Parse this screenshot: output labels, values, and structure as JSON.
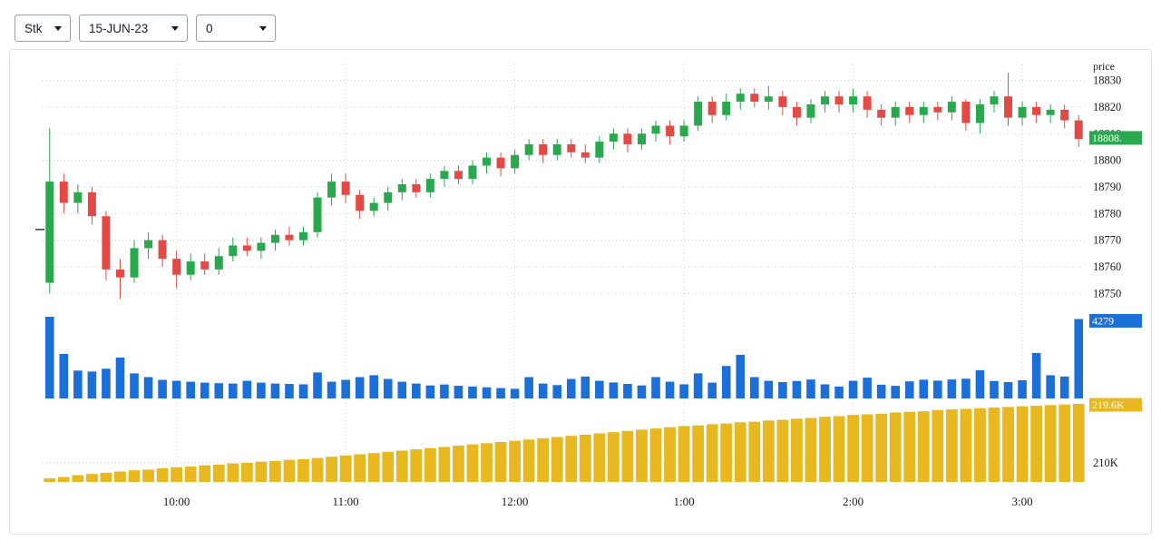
{
  "toolbar": {
    "selects": [
      {
        "name": "instrument",
        "value": "Stk"
      },
      {
        "name": "expiry",
        "value": "15-JUN-23"
      },
      {
        "name": "strike",
        "value": "0"
      }
    ]
  },
  "chart_data": {
    "type": "candlestick",
    "title": "",
    "interval": "5m",
    "grid": "dotted",
    "legend": "none",
    "panes": [
      "price-candles",
      "volume-bars",
      "cumulative-yellow-bars"
    ],
    "price_axis": {
      "title": "price",
      "ticks": [
        18830,
        18820,
        18810,
        18800,
        18790,
        18780,
        18770,
        18760,
        18750
      ],
      "range": [
        18746,
        18836
      ]
    },
    "last_price_label": "18808.",
    "last_price_value": 18808.4,
    "open_marker_price": 18774,
    "volume_tag": "4279",
    "yellow_tag": "219.6K",
    "yellow_axis_label": "210K",
    "yellow_axis_label_value": 210,
    "x_labels": [
      {
        "label": "10:00",
        "index": 9
      },
      {
        "label": "11:00",
        "index": 21
      },
      {
        "label": "12:00",
        "index": 33
      },
      {
        "label": "1:00",
        "index": 45
      },
      {
        "label": "2:00",
        "index": 57
      },
      {
        "label": "3:00",
        "index": 69
      }
    ],
    "candles": [
      [
        18754,
        18812,
        18750,
        18792
      ],
      [
        18792,
        18795,
        18780,
        18784
      ],
      [
        18784,
        18791,
        18780,
        18788
      ],
      [
        18788,
        18790,
        18776,
        18779
      ],
      [
        18779,
        18781,
        18755,
        18759
      ],
      [
        18759,
        18763,
        18748,
        18756
      ],
      [
        18756,
        18770,
        18754,
        18767
      ],
      [
        18767,
        18773,
        18763,
        18770
      ],
      [
        18770,
        18772,
        18760,
        18763
      ],
      [
        18763,
        18766,
        18752,
        18757
      ],
      [
        18757,
        18765,
        18755,
        18762
      ],
      [
        18762,
        18765,
        18757,
        18759
      ],
      [
        18759,
        18767,
        18757,
        18764
      ],
      [
        18764,
        18771,
        18762,
        18768
      ],
      [
        18768,
        18771,
        18764,
        18766
      ],
      [
        18766,
        18771,
        18763,
        18769
      ],
      [
        18769,
        18774,
        18766,
        18772
      ],
      [
        18772,
        18775,
        18768,
        18770
      ],
      [
        18770,
        18775,
        18768,
        18773
      ],
      [
        18773,
        18788,
        18771,
        18786
      ],
      [
        18786,
        18795,
        18783,
        18792
      ],
      [
        18792,
        18795,
        18784,
        18787
      ],
      [
        18787,
        18789,
        18778,
        18781
      ],
      [
        18781,
        18786,
        18779,
        18784
      ],
      [
        18784,
        18790,
        18781,
        18788
      ],
      [
        18788,
        18793,
        18785,
        18791
      ],
      [
        18791,
        18793,
        18786,
        18788
      ],
      [
        18788,
        18795,
        18786,
        18793
      ],
      [
        18793,
        18798,
        18790,
        18796
      ],
      [
        18796,
        18798,
        18791,
        18793
      ],
      [
        18793,
        18800,
        18791,
        18798
      ],
      [
        18798,
        18803,
        18795,
        18801
      ],
      [
        18801,
        18803,
        18794,
        18797
      ],
      [
        18797,
        18804,
        18795,
        18802
      ],
      [
        18802,
        18808,
        18800,
        18806
      ],
      [
        18806,
        18808,
        18799,
        18802
      ],
      [
        18802,
        18808,
        18800,
        18806
      ],
      [
        18806,
        18808,
        18801,
        18803
      ],
      [
        18803,
        18806,
        18799,
        18801
      ],
      [
        18801,
        18809,
        18799,
        18807
      ],
      [
        18807,
        18812,
        18804,
        18810
      ],
      [
        18810,
        18812,
        18803,
        18806
      ],
      [
        18806,
        18812,
        18804,
        18810
      ],
      [
        18810,
        18815,
        18807,
        18813
      ],
      [
        18813,
        18815,
        18806,
        18809
      ],
      [
        18809,
        18815,
        18807,
        18813
      ],
      [
        18813,
        18824,
        18811,
        18822
      ],
      [
        18822,
        18824,
        18814,
        18817
      ],
      [
        18817,
        18825,
        18815,
        18822
      ],
      [
        18822,
        18827,
        18819,
        18825
      ],
      [
        18825,
        18827,
        18820,
        18822
      ],
      [
        18822,
        18828,
        18819,
        18824
      ],
      [
        18824,
        18826,
        18817,
        18820
      ],
      [
        18820,
        18822,
        18813,
        18816
      ],
      [
        18816,
        18823,
        18814,
        18821
      ],
      [
        18821,
        18826,
        18818,
        18824
      ],
      [
        18824,
        18826,
        18818,
        18821
      ],
      [
        18821,
        18827,
        18818,
        18824
      ],
      [
        18824,
        18826,
        18816,
        18819
      ],
      [
        18819,
        18821,
        18813,
        18816
      ],
      [
        18816,
        18822,
        18813,
        18820
      ],
      [
        18820,
        18822,
        18814,
        18817
      ],
      [
        18817,
        18822,
        18814,
        18820
      ],
      [
        18820,
        18822,
        18815,
        18818
      ],
      [
        18818,
        18824,
        18815,
        18822
      ],
      [
        18822,
        18823,
        18811,
        18814
      ],
      [
        18814,
        18823,
        18810,
        18821
      ],
      [
        18821,
        18826,
        18818,
        18824
      ],
      [
        18824,
        18833,
        18813,
        18816
      ],
      [
        18816,
        18822,
        18813,
        18820
      ],
      [
        18820,
        18822,
        18814,
        18817
      ],
      [
        18817,
        18821,
        18814,
        18819
      ],
      [
        18819,
        18821,
        18812,
        18815
      ],
      [
        18815,
        18817,
        18805,
        18808
      ]
    ],
    "volumes": [
      4400,
      2400,
      1500,
      1450,
      1600,
      2200,
      1350,
      1150,
      1000,
      950,
      900,
      850,
      820,
      800,
      950,
      850,
      800,
      780,
      760,
      1400,
      900,
      1000,
      1150,
      1250,
      1050,
      900,
      800,
      700,
      750,
      680,
      640,
      600,
      560,
      520,
      1150,
      800,
      720,
      1050,
      1180,
      950,
      860,
      780,
      700,
      1150,
      900,
      760,
      1350,
      850,
      1750,
      2350,
      1150,
      950,
      880,
      940,
      1020,
      760,
      640,
      950,
      1120,
      740,
      680,
      920,
      1010,
      960,
      1020,
      1060,
      1520,
      940,
      880,
      980,
      2450,
      1250,
      1180,
      4279
    ],
    "cumulative_bars_k": [
      207.5,
      207.7,
      208.0,
      208.2,
      208.4,
      208.6,
      208.8,
      208.9,
      209.1,
      209.3,
      209.4,
      209.6,
      209.7,
      209.9,
      210.0,
      210.2,
      210.3,
      210.5,
      210.6,
      210.8,
      211.0,
      211.2,
      211.4,
      211.6,
      211.8,
      212.0,
      212.2,
      212.4,
      212.6,
      212.8,
      213.0,
      213.2,
      213.4,
      213.6,
      213.8,
      214.0,
      214.2,
      214.4,
      214.6,
      214.8,
      215.0,
      215.2,
      215.4,
      215.6,
      215.8,
      216.0,
      216.1,
      216.3,
      216.4,
      216.6,
      216.7,
      216.9,
      217.0,
      217.2,
      217.3,
      217.5,
      217.6,
      217.8,
      217.9,
      218.0,
      218.2,
      218.3,
      218.4,
      218.6,
      218.7,
      218.8,
      218.9,
      219.0,
      219.1,
      219.2,
      219.3,
      219.4,
      219.5,
      219.6
    ],
    "colors": {
      "up": "#2aa84e",
      "down": "#e24b45",
      "volume": "#1b6fd6",
      "yellow": "#e8b820",
      "grid": "#cfcfd6",
      "axis_text": "#1a1a1a",
      "tag_text": "#ffffff"
    }
  }
}
